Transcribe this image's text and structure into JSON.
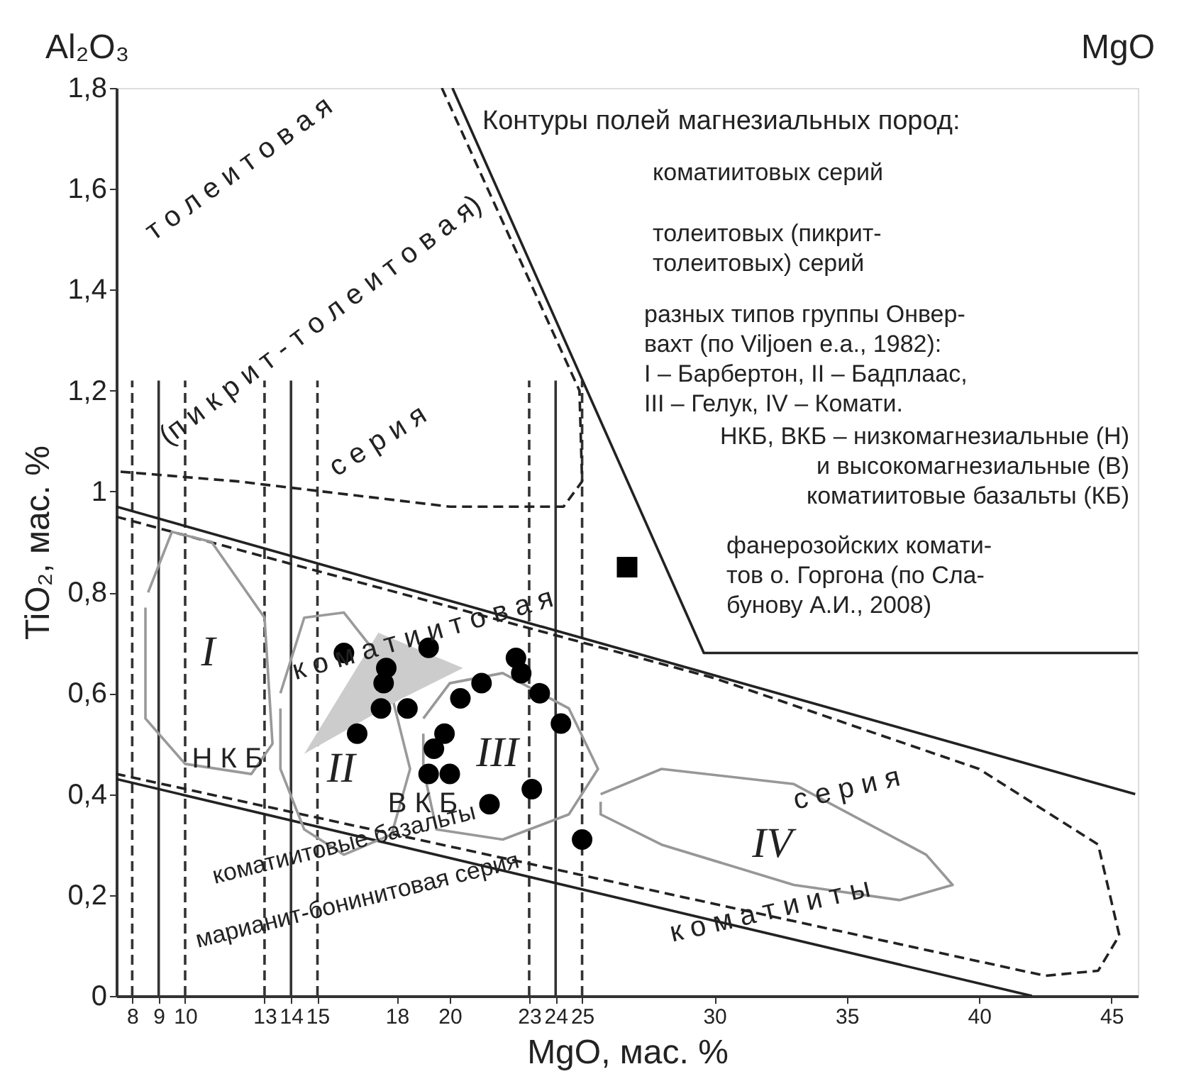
{
  "chart_data": {
    "type": "scatter",
    "xlabel": "MgO, мас. %",
    "ylabel": "TiO₂, мас. %",
    "xlim": [
      7.4,
      46
    ],
    "xticks": [
      8,
      9,
      10,
      13,
      14,
      15,
      18,
      20,
      23,
      24,
      25,
      30,
      35,
      40,
      45
    ],
    "ylim": [
      0,
      1.8
    ],
    "yticks": [
      {
        "value": 0,
        "label": "0"
      },
      {
        "value": 0.2,
        "label": "0,2"
      },
      {
        "value": 0.4,
        "label": "0,4"
      },
      {
        "value": 0.6,
        "label": "0,6"
      },
      {
        "value": 0.8,
        "label": "0,8"
      },
      {
        "value": 1,
        "label": "1"
      },
      {
        "value": 1.2,
        "label": "1,2"
      },
      {
        "value": 1.4,
        "label": "1,4"
      },
      {
        "value": 1.6,
        "label": "1,6"
      },
      {
        "value": 1.8,
        "label": "1,8"
      }
    ],
    "grid": false,
    "series": [
      {
        "type": "line",
        "color": "#333333",
        "line_style": "dashed",
        "x": [
          8,
          8
        ],
        "values": [
          0,
          1.22
        ]
      },
      {
        "type": "line",
        "color": "#333333",
        "line_style": "solid",
        "x": [
          9,
          9
        ],
        "values": [
          0,
          1.22
        ]
      },
      {
        "type": "line",
        "color": "#333333",
        "line_style": "dashed",
        "x": [
          10,
          10
        ],
        "values": [
          0,
          1.22
        ]
      },
      {
        "type": "line",
        "color": "#333333",
        "line_style": "dashed",
        "x": [
          13,
          13
        ],
        "values": [
          0,
          1.22
        ]
      },
      {
        "type": "line",
        "color": "#333333",
        "line_style": "solid",
        "x": [
          14,
          14
        ],
        "values": [
          0,
          1.22
        ]
      },
      {
        "type": "line",
        "color": "#333333",
        "line_style": "dashed",
        "x": [
          15,
          15
        ],
        "values": [
          0,
          1.22
        ]
      },
      {
        "type": "line",
        "color": "#333333",
        "line_style": "dashed",
        "x": [
          23,
          23
        ],
        "values": [
          0,
          1.22
        ]
      },
      {
        "type": "line",
        "color": "#333333",
        "line_style": "solid",
        "x": [
          24,
          24
        ],
        "values": [
          0,
          1.22
        ]
      },
      {
        "type": "line",
        "color": "#333333",
        "line_style": "dashed",
        "x": [
          25,
          25
        ],
        "values": [
          0,
          1.22
        ]
      },
      {
        "type": "line",
        "color": "#222222",
        "line_style": "solid",
        "x": [
          7.4,
          45.9
        ],
        "values": [
          0.97,
          0.4
        ]
      },
      {
        "type": "line",
        "color": "#222222",
        "line_style": "solid",
        "x": [
          7.4,
          42.0
        ],
        "values": [
          0.43,
          0
        ]
      },
      {
        "type": "line",
        "color": "#222222",
        "line_style": "solid",
        "x": [
          20.1,
          29.6,
          46
        ],
        "values": [
          1.8,
          0.68,
          0.68
        ]
      },
      {
        "type": "line",
        "color": "#222222",
        "line_style": "dashed",
        "x": [
          7.4,
          30,
          40,
          44.5,
          45.3,
          44.5,
          42.5,
          7.4
        ],
        "values": [
          0.95,
          0.63,
          0.45,
          0.3,
          0.12,
          0.05,
          0.04,
          0.44
        ]
      },
      {
        "type": "line",
        "color": "#222222",
        "line_style": "dashed",
        "x": [
          19.7,
          24.9,
          25.0,
          24.3,
          20,
          12,
          7.4
        ],
        "values": [
          1.8,
          1.2,
          1.02,
          0.97,
          0.97,
          1.02,
          1.04
        ]
      },
      {
        "type": "line",
        "color": "#999999",
        "line_style": "solid",
        "x": [
          8.6,
          9.5,
          11,
          13,
          13.3,
          12.5,
          10,
          8.5,
          8.5
        ],
        "values": [
          0.8,
          0.92,
          0.9,
          0.75,
          0.5,
          0.44,
          0.46,
          0.55,
          0.77
        ]
      },
      {
        "type": "line",
        "color": "#9a9a9a",
        "line_style": "solid",
        "x": [
          13.6,
          14.5,
          16,
          17.5,
          18.5,
          17.8,
          16,
          14.5,
          13.6,
          13.6
        ],
        "values": [
          0.6,
          0.75,
          0.76,
          0.66,
          0.45,
          0.32,
          0.28,
          0.33,
          0.45,
          0.57
        ]
      },
      {
        "type": "line",
        "color": "#989898",
        "line_style": "solid",
        "x": [
          19,
          20,
          22,
          24.5,
          25.6,
          24.5,
          22,
          19.5,
          19,
          19
        ],
        "values": [
          0.55,
          0.62,
          0.64,
          0.57,
          0.45,
          0.36,
          0.31,
          0.33,
          0.45,
          0.52
        ]
      },
      {
        "type": "line",
        "color": "#979797",
        "line_style": "solid",
        "x": [
          25.7,
          28,
          33,
          38,
          39,
          37,
          33,
          28,
          25.7,
          25.7
        ],
        "values": [
          0.4,
          0.45,
          0.42,
          0.28,
          0.22,
          0.19,
          0.22,
          0.3,
          0.36,
          0.385
        ]
      },
      {
        "type": "area",
        "color": "#cccccc",
        "x": [
          14.5,
          17.3,
          20.5,
          18.2,
          14.5
        ],
        "values": [
          0.48,
          0.72,
          0.65,
          0.59,
          0.48
        ]
      },
      {
        "color": "#000000",
        "marker": "circle",
        "x": [
          16.0,
          19.2,
          17.6,
          17.5,
          17.4,
          18.4,
          16.5,
          22.5,
          22.7,
          23.4,
          21.2,
          20.4,
          24.2,
          19.8,
          19.4,
          19.2,
          20.0,
          21.5,
          23.1,
          25.0
        ],
        "values": [
          0.68,
          0.69,
          0.65,
          0.62,
          0.57,
          0.57,
          0.52,
          0.67,
          0.64,
          0.6,
          0.62,
          0.59,
          0.54,
          0.52,
          0.49,
          0.44,
          0.44,
          0.38,
          0.41,
          0.31
        ]
      },
      {
        "color": "#000000",
        "marker": "square",
        "x": [
          26.7
        ],
        "values": [
          0.85
        ]
      }
    ],
    "annotations": [
      "I",
      "II",
      "III",
      "IV",
      "Н К Б",
      "В К Б",
      "к о м а т и и т о в а я",
      "с е р и я",
      "коматиитовые базальты",
      "марианит-бонинитовая серия",
      "к о м а т и и т ы",
      "т о л е и т о в а я",
      "(п и к р и т - т о л е и т о в а я)",
      "с е р и я",
      "Al₂O₃",
      "MgO",
      "Контуры полей магнезиальных пород:",
      "коматиитовых серий",
      "толеитовых (пикрит-\nтолеитовых) серий",
      "разных типов группы Онвер-\nвахт (по Viljoen e.a., 1982):\nI – Барбертон, II – Бадплаас,\nIII – Гелук, IV – Комати.",
      "НКБ, ВКБ – низкомагнезиальные (Н)\nи высокомагнезиальные (В)\nкоматиитовые базальты (КБ)",
      "фанерозойских комати-\nтов о. Горгона (по Сла-\nбунову А.И., 2008)"
    ]
  }
}
